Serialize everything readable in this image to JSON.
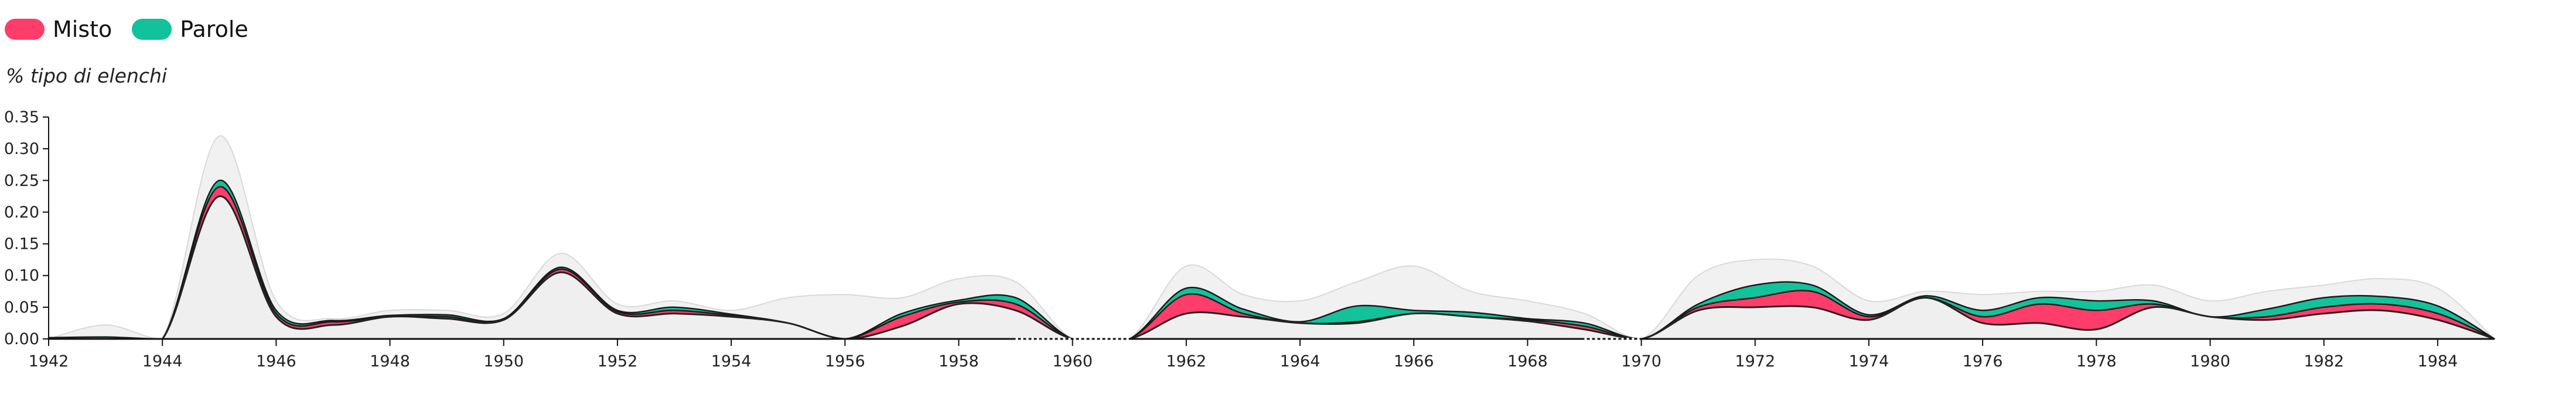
{
  "legend": [
    {
      "label": "Misto",
      "color": "#ff3d6b"
    },
    {
      "label": "Parole",
      "color": "#12c29a"
    }
  ],
  "chart_data": {
    "type": "area",
    "ylabel": "% tipo di elenchi",
    "xlabel": "",
    "ylim": [
      0,
      0.35
    ],
    "xlim": [
      1942,
      1985
    ],
    "y_ticks": [
      "0.00",
      "0.05",
      "0.10",
      "0.15",
      "0.20",
      "0.25",
      "0.30",
      "0.35"
    ],
    "x_ticks": [
      "1942",
      "1944",
      "1946",
      "1948",
      "1950",
      "1952",
      "1954",
      "1956",
      "1958",
      "1960",
      "1962",
      "1964",
      "1966",
      "1968",
      "1970",
      "1972",
      "1974",
      "1976",
      "1978",
      "1980",
      "1982",
      "1984"
    ],
    "grid": false,
    "legend_position": "top-left",
    "years": [
      1942,
      1943,
      1944,
      1945,
      1946,
      1947,
      1948,
      1949,
      1950,
      1951,
      1952,
      1953,
      1954,
      1955,
      1956,
      1957,
      1958,
      1959,
      1960,
      1961,
      1962,
      1963,
      1964,
      1965,
      1966,
      1967,
      1968,
      1969,
      1970,
      1971,
      1972,
      1973,
      1974,
      1975,
      1976,
      1977,
      1978,
      1979,
      1980,
      1981,
      1982,
      1983,
      1984,
      1985
    ],
    "series": [
      {
        "name": "Misto",
        "color": "#ff3d6b",
        "values": [
          0,
          0,
          0,
          0.015,
          0.005,
          0.005,
          0,
          0.003,
          0,
          0.005,
          0.003,
          0.005,
          0.002,
          0,
          0,
          0.015,
          0.003,
          0.01,
          0,
          0,
          0.03,
          0.005,
          0,
          0.002,
          0,
          0,
          0.002,
          0.005,
          0,
          0.005,
          0.015,
          0.025,
          0.005,
          0,
          0.01,
          0.03,
          0.03,
          0.005,
          0,
          0.005,
          0.01,
          0.01,
          0.01,
          0
        ]
      },
      {
        "name": "Parole",
        "color": "#12c29a",
        "values": [
          0.002,
          0.003,
          0,
          0.01,
          0.005,
          0.002,
          0.002,
          0.003,
          0.002,
          0.003,
          0.002,
          0.005,
          0.002,
          0,
          0,
          0.005,
          0.003,
          0.01,
          0,
          0,
          0.01,
          0.007,
          0.002,
          0.025,
          0.005,
          0.007,
          0.002,
          0.005,
          0,
          0.005,
          0.02,
          0.01,
          0.003,
          0.003,
          0.01,
          0.01,
          0.015,
          0.005,
          0,
          0.012,
          0.015,
          0.012,
          0.012,
          0
        ]
      }
    ],
    "other_values": [
      0,
      0,
      0,
      0.225,
      0.035,
      0.022,
      0.035,
      0.032,
      0.03,
      0.105,
      0.04,
      0.04,
      0.035,
      0.025,
      0,
      0.02,
      0.055,
      0.045,
      0,
      0,
      0.04,
      0.035,
      0.025,
      0.025,
      0.04,
      0.035,
      0.028,
      0.015,
      0,
      0.045,
      0.05,
      0.05,
      0.03,
      0.065,
      0.025,
      0.025,
      0.015,
      0.05,
      0.035,
      0.03,
      0.04,
      0.045,
      0.03,
      0
    ],
    "total_values": [
      0,
      0.022,
      0,
      0.32,
      0.06,
      0.032,
      0.045,
      0.045,
      0.04,
      0.135,
      0.055,
      0.06,
      0.045,
      0.065,
      0.07,
      0.065,
      0.095,
      0.09,
      0,
      0,
      0.115,
      0.07,
      0.06,
      0.09,
      0.115,
      0.075,
      0.06,
      0.04,
      0,
      0.1,
      0.125,
      0.115,
      0.06,
      0.075,
      0.07,
      0.075,
      0.075,
      0.085,
      0.06,
      0.075,
      0.085,
      0.095,
      0.08,
      0
    ],
    "gaps": [
      [
        1959,
        1961
      ],
      [
        1969,
        1970
      ]
    ],
    "background_color": "#f1f1f1",
    "background_stroke": "#d9d9d9",
    "line_color": "#222222",
    "axis_color": "#111111"
  }
}
